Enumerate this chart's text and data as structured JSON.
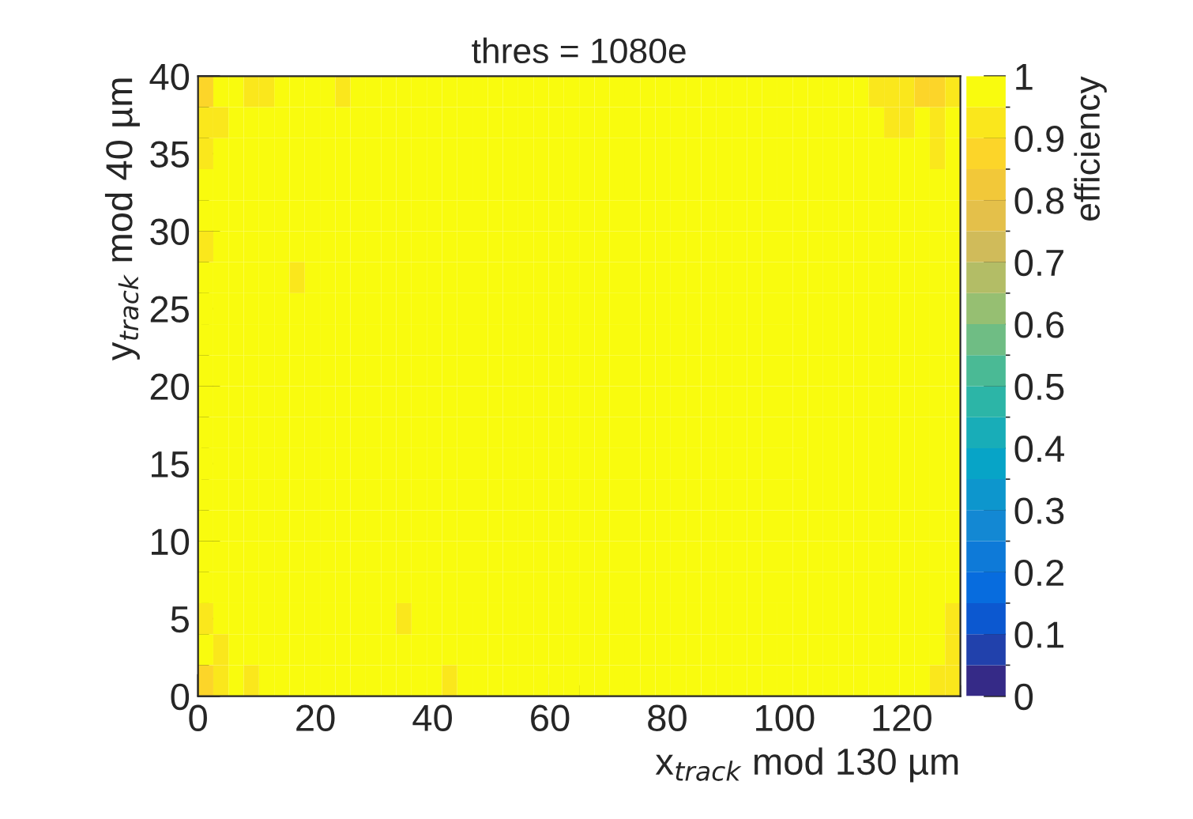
{
  "chart_data": {
    "type": "heatmap",
    "title": "thres = 1080e",
    "xlabel": "x$_{track}$ mod 130 µm",
    "ylabel": "y$_{track}$ mod 40 µm",
    "clabel": "efficiency",
    "xlim": [
      0,
      130
    ],
    "ylim": [
      0,
      40
    ],
    "xticks": [
      0,
      20,
      40,
      60,
      80,
      100,
      120
    ],
    "yticks": [
      0,
      5,
      10,
      15,
      20,
      25,
      30,
      35,
      40
    ],
    "clim": [
      0,
      1
    ],
    "cticks": [
      0,
      0.1,
      0.2,
      0.3,
      0.4,
      0.5,
      0.6,
      0.7,
      0.8,
      0.9,
      1
    ],
    "cells": [
      [
        0.88,
        1,
        1,
        0.93,
        0.93,
        1,
        1,
        1,
        1,
        0.93,
        1,
        1,
        1,
        1,
        1,
        1,
        1,
        1,
        1,
        1,
        1,
        1,
        1,
        1,
        1,
        1,
        1,
        1,
        1,
        1,
        1,
        1,
        1,
        1,
        1,
        1,
        1,
        1,
        1,
        1,
        1,
        1,
        1,
        1,
        0.93,
        0.93,
        0.93,
        0.88,
        0.88,
        0.93
      ],
      [
        0.93,
        0.93,
        1,
        1,
        1,
        1,
        1,
        1,
        1,
        1,
        1,
        1,
        1,
        1,
        1,
        1,
        1,
        1,
        1,
        1,
        1,
        1,
        1,
        1,
        1,
        1,
        1,
        1,
        1,
        1,
        1,
        1,
        1,
        1,
        1,
        1,
        1,
        1,
        1,
        1,
        1,
        1,
        1,
        1,
        1,
        0.93,
        0.93,
        1,
        0.93,
        1
      ],
      [
        0.93,
        1,
        1,
        1,
        1,
        1,
        1,
        1,
        1,
        1,
        1,
        1,
        1,
        1,
        1,
        1,
        1,
        1,
        1,
        1,
        1,
        1,
        1,
        1,
        1,
        1,
        1,
        1,
        1,
        1,
        1,
        1,
        1,
        1,
        1,
        1,
        1,
        1,
        1,
        1,
        1,
        1,
        1,
        1,
        1,
        1,
        1,
        1,
        0.93,
        1
      ],
      [
        1,
        1,
        1,
        1,
        1,
        1,
        1,
        1,
        1,
        1,
        1,
        1,
        1,
        1,
        1,
        1,
        1,
        1,
        1,
        1,
        1,
        1,
        1,
        1,
        1,
        1,
        1,
        1,
        1,
        1,
        1,
        1,
        1,
        1,
        1,
        1,
        1,
        1,
        1,
        1,
        1,
        1,
        1,
        1,
        1,
        1,
        1,
        1,
        1,
        1
      ],
      [
        1,
        1,
        1,
        1,
        1,
        1,
        1,
        1,
        1,
        1,
        1,
        1,
        1,
        1,
        1,
        1,
        1,
        1,
        1,
        1,
        1,
        1,
        1,
        1,
        1,
        1,
        1,
        1,
        1,
        1,
        1,
        1,
        1,
        1,
        1,
        1,
        1,
        1,
        1,
        1,
        1,
        1,
        1,
        1,
        1,
        1,
        1,
        1,
        1,
        1
      ],
      [
        0.93,
        1,
        1,
        1,
        1,
        1,
        1,
        1,
        1,
        1,
        1,
        1,
        1,
        1,
        1,
        1,
        1,
        1,
        1,
        1,
        1,
        1,
        1,
        1,
        1,
        1,
        1,
        1,
        1,
        1,
        1,
        1,
        1,
        1,
        1,
        1,
        1,
        1,
        1,
        1,
        1,
        1,
        1,
        1,
        1,
        1,
        1,
        1,
        1,
        1
      ],
      [
        1,
        1,
        1,
        1,
        1,
        1,
        0.93,
        1,
        1,
        1,
        1,
        1,
        1,
        1,
        1,
        1,
        1,
        1,
        1,
        1,
        1,
        1,
        1,
        1,
        1,
        1,
        1,
        1,
        1,
        1,
        1,
        1,
        1,
        1,
        1,
        1,
        1,
        1,
        1,
        1,
        1,
        1,
        1,
        1,
        1,
        1,
        1,
        1,
        1,
        1
      ],
      [
        1,
        1,
        1,
        1,
        1,
        1,
        1,
        1,
        1,
        1,
        1,
        1,
        1,
        1,
        1,
        1,
        1,
        1,
        1,
        1,
        1,
        1,
        1,
        1,
        1,
        1,
        1,
        1,
        1,
        1,
        1,
        1,
        1,
        1,
        1,
        1,
        1,
        1,
        1,
        1,
        1,
        1,
        1,
        1,
        1,
        1,
        1,
        1,
        1,
        1
      ],
      [
        1,
        1,
        1,
        1,
        1,
        1,
        1,
        1,
        1,
        1,
        1,
        1,
        1,
        1,
        1,
        1,
        1,
        1,
        1,
        1,
        1,
        1,
        1,
        1,
        1,
        1,
        1,
        1,
        1,
        1,
        1,
        1,
        1,
        1,
        1,
        1,
        1,
        1,
        1,
        1,
        1,
        1,
        1,
        1,
        1,
        1,
        1,
        1,
        1,
        1
      ],
      [
        1,
        1,
        1,
        1,
        1,
        1,
        1,
        1,
        1,
        1,
        1,
        1,
        1,
        1,
        1,
        1,
        1,
        1,
        1,
        1,
        1,
        1,
        1,
        1,
        1,
        1,
        1,
        1,
        1,
        1,
        1,
        1,
        1,
        1,
        1,
        1,
        1,
        1,
        1,
        1,
        1,
        1,
        1,
        1,
        1,
        1,
        1,
        1,
        1,
        1
      ],
      [
        1,
        1,
        1,
        1,
        1,
        1,
        1,
        1,
        1,
        1,
        1,
        1,
        1,
        1,
        1,
        1,
        1,
        1,
        1,
        1,
        1,
        1,
        1,
        1,
        1,
        1,
        1,
        1,
        1,
        1,
        1,
        1,
        1,
        1,
        1,
        1,
        1,
        1,
        1,
        1,
        1,
        1,
        1,
        1,
        1,
        1,
        1,
        1,
        1,
        1
      ],
      [
        1,
        1,
        1,
        1,
        1,
        1,
        1,
        1,
        1,
        1,
        1,
        1,
        1,
        1,
        1,
        1,
        1,
        1,
        1,
        1,
        1,
        1,
        1,
        1,
        1,
        1,
        1,
        1,
        1,
        1,
        1,
        1,
        1,
        1,
        1,
        1,
        1,
        1,
        1,
        1,
        1,
        1,
        1,
        1,
        1,
        1,
        1,
        1,
        1,
        1
      ],
      [
        1,
        1,
        1,
        1,
        1,
        1,
        1,
        1,
        1,
        1,
        1,
        1,
        1,
        1,
        1,
        1,
        1,
        1,
        1,
        1,
        1,
        1,
        1,
        1,
        1,
        1,
        1,
        1,
        1,
        1,
        1,
        1,
        1,
        1,
        1,
        1,
        1,
        1,
        1,
        1,
        1,
        1,
        1,
        1,
        1,
        1,
        1,
        1,
        1,
        1
      ],
      [
        1,
        1,
        1,
        1,
        1,
        1,
        1,
        1,
        1,
        1,
        1,
        1,
        1,
        1,
        1,
        1,
        1,
        1,
        1,
        1,
        1,
        1,
        1,
        1,
        1,
        1,
        1,
        1,
        1,
        1,
        1,
        1,
        1,
        1,
        1,
        1,
        1,
        1,
        1,
        1,
        1,
        1,
        1,
        1,
        1,
        1,
        1,
        1,
        1,
        1
      ],
      [
        1,
        1,
        1,
        1,
        1,
        1,
        1,
        1,
        1,
        1,
        1,
        1,
        1,
        1,
        1,
        1,
        1,
        1,
        1,
        1,
        1,
        1,
        1,
        1,
        1,
        1,
        1,
        1,
        1,
        1,
        1,
        1,
        1,
        1,
        1,
        1,
        1,
        1,
        1,
        1,
        1,
        1,
        1,
        1,
        1,
        1,
        1,
        1,
        1,
        1
      ],
      [
        1,
        1,
        1,
        1,
        1,
        1,
        1,
        1,
        1,
        1,
        1,
        1,
        1,
        1,
        1,
        1,
        1,
        1,
        1,
        1,
        1,
        1,
        1,
        1,
        1,
        1,
        1,
        1,
        1,
        1,
        1,
        1,
        1,
        1,
        1,
        1,
        1,
        1,
        1,
        1,
        1,
        1,
        1,
        1,
        1,
        1,
        1,
        1,
        1,
        1
      ],
      [
        1,
        1,
        1,
        1,
        1,
        1,
        1,
        1,
        1,
        1,
        1,
        1,
        1,
        1,
        1,
        1,
        1,
        1,
        1,
        1,
        1,
        1,
        1,
        1,
        1,
        1,
        1,
        1,
        1,
        1,
        1,
        1,
        1,
        1,
        1,
        1,
        1,
        1,
        1,
        1,
        1,
        1,
        1,
        1,
        1,
        1,
        1,
        1,
        1,
        1
      ],
      [
        0.93,
        1,
        1,
        1,
        1,
        1,
        1,
        1,
        1,
        1,
        1,
        1,
        1,
        0.93,
        1,
        1,
        1,
        1,
        1,
        1,
        1,
        1,
        1,
        1,
        1,
        1,
        1,
        1,
        1,
        1,
        1,
        1,
        1,
        1,
        1,
        1,
        1,
        1,
        1,
        1,
        1,
        1,
        1,
        1,
        1,
        1,
        1,
        1,
        1,
        0.93
      ],
      [
        1,
        0.93,
        1,
        1,
        1,
        1,
        1,
        1,
        1,
        1,
        1,
        1,
        1,
        1,
        1,
        1,
        1,
        1,
        1,
        1,
        1,
        1,
        1,
        1,
        1,
        1,
        1,
        1,
        1,
        1,
        1,
        1,
        1,
        1,
        1,
        1,
        1,
        1,
        1,
        1,
        1,
        1,
        1,
        1,
        1,
        1,
        1,
        1,
        1,
        0.93
      ],
      [
        0.88,
        0.93,
        1,
        0.93,
        1,
        1,
        1,
        1,
        1,
        1,
        1,
        1,
        1,
        1,
        1,
        1,
        0.93,
        1,
        1,
        1,
        1,
        1,
        1,
        1,
        1,
        1,
        1,
        1,
        1,
        1,
        1,
        1,
        1,
        1,
        1,
        1,
        1,
        1,
        1,
        1,
        1,
        1,
        1,
        1,
        1,
        1,
        1,
        1,
        0.93,
        0.93
      ]
    ]
  }
}
